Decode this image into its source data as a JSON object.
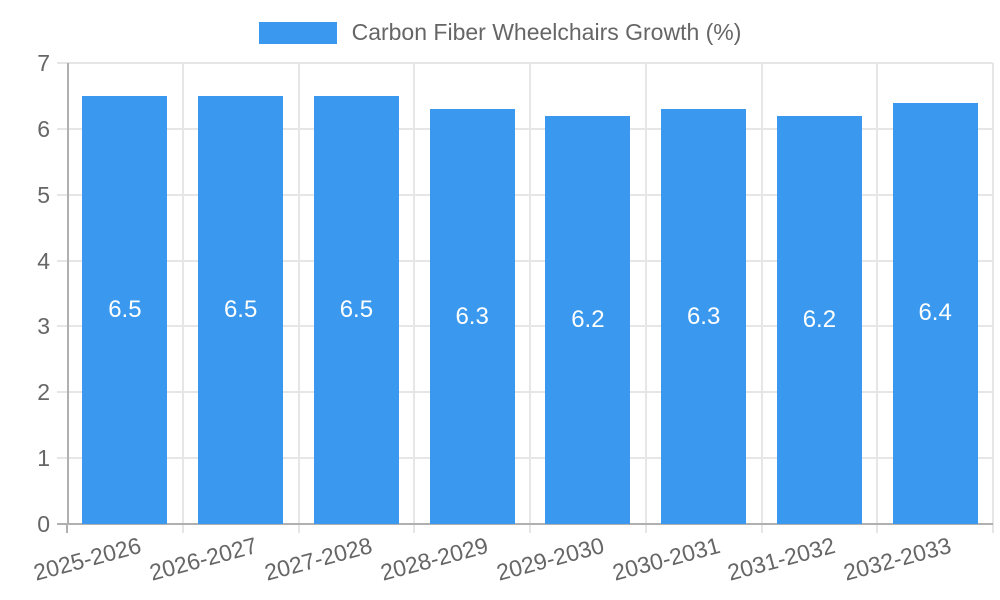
{
  "legend": {
    "label": "Carbon Fiber Wheelchairs Growth (%)"
  },
  "chart_data": {
    "type": "bar",
    "title": "Carbon Fiber Wheelchairs Growth (%)",
    "series_name": "Carbon Fiber Wheelchairs Growth (%)",
    "categories": [
      "2025-2026",
      "2026-2027",
      "2027-2028",
      "2028-2029",
      "2029-2030",
      "2030-2031",
      "2031-2032",
      "2032-2033"
    ],
    "values": [
      6.5,
      6.5,
      6.5,
      6.3,
      6.2,
      6.3,
      6.2,
      6.4
    ],
    "value_labels": [
      "6.5",
      "6.5",
      "6.5",
      "6.3",
      "6.2",
      "6.3",
      "6.2",
      "6.4"
    ],
    "xlabel": "",
    "ylabel": "",
    "ylim": [
      0,
      7
    ],
    "yticks": [
      0,
      1,
      2,
      3,
      4,
      5,
      6,
      7
    ],
    "grid": true,
    "legend_position": "top",
    "x_label_rotation_deg": -15
  },
  "colors": {
    "bar": "#3a99ee",
    "value_label": "#ffffff",
    "grid": "#e6e6e6",
    "axis": "#b0b0b0",
    "tick_text": "#666666",
    "background": "#ffffff"
  }
}
